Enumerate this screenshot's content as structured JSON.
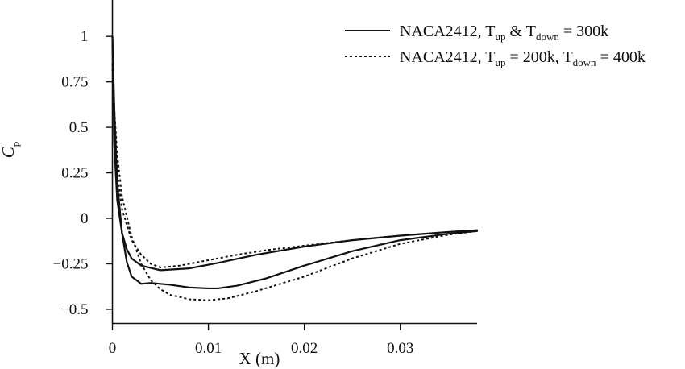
{
  "chart_data": {
    "type": "line",
    "title": "",
    "xlabel": "X (m)",
    "ylabel_main": "C",
    "ylabel_sub": "p",
    "xlim": [
      0,
      0.038
    ],
    "ylim": [
      -0.58,
      1.2
    ],
    "xticks": [
      {
        "value": 0,
        "label": "0"
      },
      {
        "value": 0.01,
        "label": "0.01"
      },
      {
        "value": 0.02,
        "label": "0.02"
      },
      {
        "value": 0.03,
        "label": "0.03"
      }
    ],
    "yticks": [
      {
        "value": 1,
        "label": "1"
      },
      {
        "value": 0.75,
        "label": "0.75"
      },
      {
        "value": 0.5,
        "label": "0.5"
      },
      {
        "value": 0.25,
        "label": "0.25"
      },
      {
        "value": 0,
        "label": "0"
      },
      {
        "value": -0.25,
        "label": "−0.25"
      },
      {
        "value": -0.5,
        "label": "−0.5"
      }
    ],
    "grid": false,
    "legend_position": "top-right",
    "series": [
      {
        "name_parts": [
          {
            "text": "NACA2412, T"
          },
          {
            "text": "up",
            "sub": true
          },
          {
            "text": " & T"
          },
          {
            "text": "down",
            "sub": true
          },
          {
            "text": " = 300k"
          }
        ],
        "style": "solid",
        "color": "#111111",
        "curves": [
          {
            "x": [
              0,
              0.0002,
              0.0005,
              0.001,
              0.0015,
              0.002,
              0.003,
              0.005,
              0.008,
              0.011,
              0.015,
              0.02,
              0.025,
              0.03,
              0.035,
              0.038
            ],
            "y": [
              1.0,
              0.4,
              0.1,
              -0.08,
              -0.17,
              -0.22,
              -0.26,
              -0.285,
              -0.275,
              -0.245,
              -0.2,
              -0.155,
              -0.12,
              -0.095,
              -0.075,
              -0.065
            ]
          },
          {
            "x": [
              0,
              0.0002,
              0.0005,
              0.001,
              0.0015,
              0.002,
              0.003,
              0.004,
              0.006,
              0.008,
              0.01,
              0.011,
              0.013,
              0.016,
              0.02,
              0.025,
              0.03,
              0.035,
              0.038
            ],
            "y": [
              1.0,
              0.6,
              0.2,
              -0.08,
              -0.24,
              -0.32,
              -0.36,
              -0.355,
              -0.365,
              -0.38,
              -0.385,
              -0.385,
              -0.37,
              -0.33,
              -0.26,
              -0.18,
              -0.12,
              -0.085,
              -0.07
            ]
          }
        ]
      },
      {
        "name_parts": [
          {
            "text": "NACA2412, T"
          },
          {
            "text": "up",
            "sub": true
          },
          {
            "text": " = 200k, T"
          },
          {
            "text": "down",
            "sub": true
          },
          {
            "text": " = 400k"
          }
        ],
        "style": "dotted",
        "color": "#111111",
        "curves": [
          {
            "x": [
              0,
              0.0002,
              0.0005,
              0.001,
              0.002,
              0.003,
              0.004,
              0.005,
              0.007,
              0.01,
              0.013,
              0.016,
              0.02,
              0.025,
              0.03,
              0.035,
              0.038
            ],
            "y": [
              0.85,
              0.5,
              0.25,
              0.05,
              -0.12,
              -0.2,
              -0.25,
              -0.27,
              -0.26,
              -0.23,
              -0.2,
              -0.175,
              -0.15,
              -0.12,
              -0.095,
              -0.075,
              -0.065
            ]
          },
          {
            "x": [
              0,
              0.0002,
              0.0005,
              0.001,
              0.002,
              0.003,
              0.004,
              0.005,
              0.006,
              0.008,
              0.01,
              0.012,
              0.015,
              0.02,
              0.025,
              0.03,
              0.035,
              0.038
            ],
            "y": [
              0.85,
              0.6,
              0.35,
              0.12,
              -0.1,
              -0.25,
              -0.34,
              -0.39,
              -0.42,
              -0.445,
              -0.45,
              -0.44,
              -0.4,
              -0.32,
              -0.22,
              -0.14,
              -0.09,
              -0.07
            ]
          }
        ]
      }
    ]
  }
}
